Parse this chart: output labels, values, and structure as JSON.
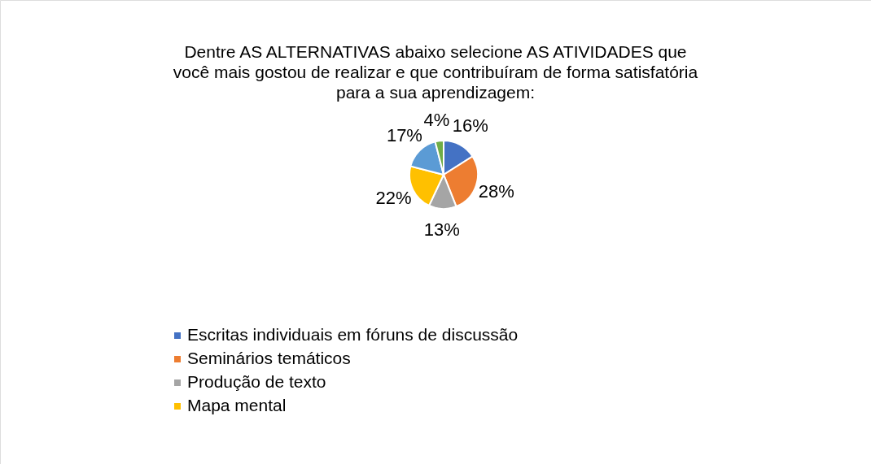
{
  "chart_data": {
    "type": "pie",
    "title": "Dentre AS ALTERNATIVAS abaixo selecione AS ATIVIDADES que\nvocê mais gostou de realizar e que contribuíram de forma satisfatória\npara a sua aprendizagem:",
    "categories": [
      "Escritas individuais em fóruns de discussão",
      "Seminários temáticos",
      "Produção de texto",
      "Mapa mental",
      null,
      null
    ],
    "values": [
      16,
      28,
      13,
      22,
      17,
      4
    ],
    "value_labels": [
      "16%",
      "28%",
      "13%",
      "22%",
      "17%",
      "4%"
    ],
    "colors": [
      "#4472c4",
      "#ed7d31",
      "#a5a5a5",
      "#ffc000",
      "#5b9bd5",
      "#70ad47"
    ],
    "legend": "bottom"
  }
}
